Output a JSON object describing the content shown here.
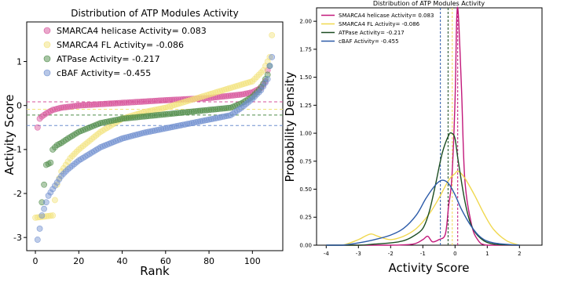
{
  "chart_data": [
    {
      "type": "scatter",
      "title": "Distribution of ATP Modules Activity",
      "xlabel": "Rank",
      "ylabel": "Activity Score",
      "xlim": [
        -4,
        114
      ],
      "ylim": [
        -3.3,
        1.9
      ],
      "xticks": [
        0,
        20,
        40,
        60,
        80,
        100
      ],
      "yticks": [
        -3,
        -2,
        -1,
        0,
        1
      ],
      "legend_position": "top-left",
      "series": [
        {
          "name": "SMARCA4 helicase Activity= 0.083",
          "color": "#d6529a",
          "mean_line": 0.083,
          "anchors": [
            [
              1,
              -0.5
            ],
            [
              2,
              -0.3
            ],
            [
              3,
              -0.25
            ],
            [
              5,
              -0.18
            ],
            [
              8,
              -0.1
            ],
            [
              12,
              -0.05
            ],
            [
              20,
              0.0
            ],
            [
              40,
              0.06
            ],
            [
              60,
              0.12
            ],
            [
              80,
              0.17
            ],
            [
              95,
              0.25
            ],
            [
              100,
              0.3
            ],
            [
              104,
              0.4
            ],
            [
              106,
              0.55
            ],
            [
              107,
              0.8
            ]
          ]
        },
        {
          "name": "SMARCA4 FL Activity= -0.086",
          "color": "#f2e27a",
          "mean_line": -0.086,
          "anchors": [
            [
              0,
              -2.55
            ],
            [
              8,
              -2.5
            ],
            [
              10,
              -1.8
            ],
            [
              12,
              -1.5
            ],
            [
              16,
              -1.2
            ],
            [
              20,
              -1.0
            ],
            [
              30,
              -0.6
            ],
            [
              40,
              -0.3
            ],
            [
              50,
              -0.15
            ],
            [
              60,
              -0.05
            ],
            [
              70,
              0.1
            ],
            [
              80,
              0.25
            ],
            [
              90,
              0.4
            ],
            [
              100,
              0.55
            ],
            [
              105,
              0.8
            ],
            [
              108,
              1.1
            ],
            [
              109,
              1.6
            ]
          ]
        },
        {
          "name": "ATPase Activity= -0.217",
          "color": "#4f8c4a",
          "mean_line": -0.217,
          "anchors": [
            [
              3,
              -2.2
            ],
            [
              4,
              -1.8
            ],
            [
              5,
              -1.35
            ],
            [
              7,
              -1.3
            ],
            [
              8,
              -1.0
            ],
            [
              10,
              -0.9
            ],
            [
              12,
              -0.85
            ],
            [
              15,
              -0.75
            ],
            [
              20,
              -0.6
            ],
            [
              25,
              -0.5
            ],
            [
              30,
              -0.4
            ],
            [
              40,
              -0.3
            ],
            [
              60,
              -0.2
            ],
            [
              80,
              -0.1
            ],
            [
              90,
              -0.05
            ],
            [
              95,
              0.05
            ],
            [
              100,
              0.2
            ],
            [
              103,
              0.35
            ],
            [
              105,
              0.5
            ],
            [
              107,
              0.7
            ],
            [
              108,
              0.9
            ]
          ]
        },
        {
          "name": "cBAF Activity= -0.455",
          "color": "#6f8fcf",
          "mean_line": -0.455,
          "anchors": [
            [
              1,
              -3.05
            ],
            [
              2,
              -2.8
            ],
            [
              3,
              -2.5
            ],
            [
              5,
              -2.2
            ],
            [
              6,
              -2.05
            ],
            [
              8,
              -1.9
            ],
            [
              10,
              -1.75
            ],
            [
              12,
              -1.6
            ],
            [
              15,
              -1.45
            ],
            [
              20,
              -1.25
            ],
            [
              30,
              -0.95
            ],
            [
              40,
              -0.75
            ],
            [
              50,
              -0.62
            ],
            [
              60,
              -0.52
            ],
            [
              70,
              -0.42
            ],
            [
              80,
              -0.32
            ],
            [
              90,
              -0.22
            ],
            [
              95,
              -0.05
            ],
            [
              100,
              0.15
            ],
            [
              104,
              0.35
            ],
            [
              107,
              0.6
            ],
            [
              108,
              0.9
            ],
            [
              109,
              1.1
            ]
          ]
        }
      ]
    },
    {
      "type": "line",
      "title": "Distribution of ATP Modules Activity",
      "xlabel": "Activity Score",
      "ylabel": "Probability Density",
      "xlim": [
        -4.3,
        2.7
      ],
      "ylim": [
        0,
        2.12
      ],
      "xticks": [
        -4,
        -3,
        -2,
        -1,
        0,
        1,
        2
      ],
      "yticks": [
        0.0,
        0.25,
        0.5,
        0.75,
        1.0,
        1.25,
        1.5,
        1.75,
        2.0
      ],
      "ytick_labels": [
        "0.00",
        "0.25",
        "0.50",
        "0.75",
        "1.00",
        "1.25",
        "1.50",
        "1.75",
        "2.00"
      ],
      "legend_position": "top-left",
      "series": [
        {
          "name": "SMARCA4 helicase Activity= 0.083",
          "color": "#c2187a",
          "mean_line": 0.083,
          "points": [
            [
              -4.0,
              0.0
            ],
            [
              -3.0,
              0.0
            ],
            [
              -2.0,
              0.0
            ],
            [
              -1.3,
              0.01
            ],
            [
              -1.0,
              0.05
            ],
            [
              -0.85,
              0.08
            ],
            [
              -0.7,
              0.03
            ],
            [
              -0.5,
              0.05
            ],
            [
              -0.3,
              0.1
            ],
            [
              -0.2,
              0.35
            ],
            [
              -0.1,
              0.6
            ],
            [
              0.0,
              1.3
            ],
            [
              0.05,
              2.0
            ],
            [
              0.1,
              2.07
            ],
            [
              0.2,
              1.4
            ],
            [
              0.3,
              0.6
            ],
            [
              0.5,
              0.2
            ],
            [
              0.7,
              0.05
            ],
            [
              1.0,
              0.0
            ],
            [
              2.0,
              0.0
            ]
          ]
        },
        {
          "name": "SMARCA4 FL Activity= -0.086",
          "color": "#f0d84f",
          "mean_line": -0.086,
          "points": [
            [
              -4.0,
              0.0
            ],
            [
              -3.5,
              0.0
            ],
            [
              -3.0,
              0.05
            ],
            [
              -2.8,
              0.08
            ],
            [
              -2.6,
              0.1
            ],
            [
              -2.4,
              0.08
            ],
            [
              -2.0,
              0.05
            ],
            [
              -1.6,
              0.08
            ],
            [
              -1.2,
              0.15
            ],
            [
              -0.8,
              0.28
            ],
            [
              -0.5,
              0.42
            ],
            [
              -0.2,
              0.58
            ],
            [
              0.0,
              0.64
            ],
            [
              0.1,
              0.66
            ],
            [
              0.3,
              0.6
            ],
            [
              0.6,
              0.45
            ],
            [
              0.9,
              0.28
            ],
            [
              1.2,
              0.14
            ],
            [
              1.6,
              0.04
            ],
            [
              2.0,
              0.0
            ]
          ]
        },
        {
          "name": "ATPase Activity= -0.217",
          "color": "#1c4d22",
          "mean_line": -0.217,
          "points": [
            [
              -4.0,
              0.0
            ],
            [
              -3.0,
              0.0
            ],
            [
              -2.5,
              0.01
            ],
            [
              -2.0,
              0.02
            ],
            [
              -1.6,
              0.04
            ],
            [
              -1.3,
              0.08
            ],
            [
              -1.0,
              0.15
            ],
            [
              -0.8,
              0.3
            ],
            [
              -0.6,
              0.55
            ],
            [
              -0.4,
              0.82
            ],
            [
              -0.2,
              0.98
            ],
            [
              -0.1,
              1.0
            ],
            [
              0.0,
              0.95
            ],
            [
              0.1,
              0.75
            ],
            [
              0.3,
              0.4
            ],
            [
              0.5,
              0.18
            ],
            [
              0.8,
              0.06
            ],
            [
              1.2,
              0.01
            ],
            [
              2.0,
              0.0
            ]
          ]
        },
        {
          "name": "cBAF Activity= -0.455",
          "color": "#2b5aa8",
          "mean_line": -0.455,
          "points": [
            [
              -4.0,
              0.0
            ],
            [
              -3.5,
              0.0
            ],
            [
              -3.0,
              0.02
            ],
            [
              -2.5,
              0.05
            ],
            [
              -2.0,
              0.09
            ],
            [
              -1.6,
              0.15
            ],
            [
              -1.2,
              0.27
            ],
            [
              -0.9,
              0.42
            ],
            [
              -0.6,
              0.54
            ],
            [
              -0.4,
              0.58
            ],
            [
              -0.2,
              0.55
            ],
            [
              0.0,
              0.45
            ],
            [
              0.2,
              0.32
            ],
            [
              0.5,
              0.17
            ],
            [
              0.8,
              0.07
            ],
            [
              1.2,
              0.02
            ],
            [
              2.0,
              0.0
            ]
          ]
        }
      ]
    }
  ]
}
